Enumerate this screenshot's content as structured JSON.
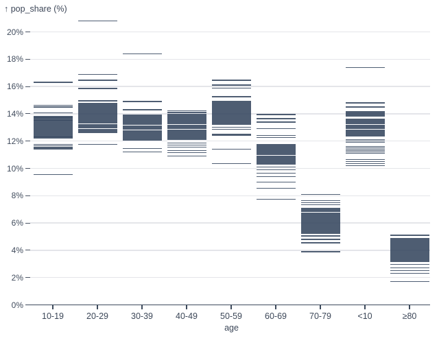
{
  "chart_data": {
    "type": "tick",
    "title": "",
    "ylabel": "↑ pop_share (%)",
    "xlabel": "age",
    "ylim": [
      0,
      21
    ],
    "yticks": [
      0,
      2,
      4,
      6,
      8,
      10,
      12,
      14,
      16,
      18,
      20
    ],
    "ytick_suffix": "%",
    "grid": true,
    "legend": "none",
    "colors": {
      "tick": "#36475e",
      "grid": "#e4e5e9",
      "axis": "#3d4a5c",
      "text": "#3c4758"
    },
    "categories": [
      "10-19",
      "20-29",
      "30-39",
      "40-49",
      "50-59",
      "60-69",
      "70-79",
      "<10",
      "≥80"
    ],
    "series": [
      {
        "age": "10-19",
        "values": [
          16.3,
          14.62,
          14.5,
          14.08,
          13.82,
          13.75,
          13.69,
          13.62,
          13.55,
          13.49,
          13.42,
          13.36,
          13.3,
          13.24,
          13.18,
          13.12,
          13.05,
          12.99,
          12.93,
          12.86,
          12.8,
          12.73,
          12.67,
          12.6,
          12.54,
          12.47,
          12.41,
          12.34,
          12.28,
          12.22,
          11.76,
          11.65,
          11.54,
          11.44,
          9.55
        ]
      },
      {
        "age": "20-29",
        "values": [
          20.82,
          16.9,
          16.45,
          15.85,
          14.95,
          14.76,
          14.7,
          14.63,
          14.56,
          14.49,
          14.42,
          14.35,
          14.28,
          14.21,
          14.14,
          14.07,
          14.0,
          13.93,
          13.86,
          13.79,
          13.72,
          13.65,
          13.58,
          13.51,
          13.44,
          13.37,
          13.3,
          13.23,
          13.16,
          13.09,
          13.02,
          12.95,
          12.88,
          12.81,
          12.74,
          12.67,
          12.6,
          11.76
        ]
      },
      {
        "age": "30-39",
        "values": [
          18.4,
          14.9,
          14.3,
          13.9,
          13.83,
          13.76,
          13.69,
          13.62,
          13.55,
          13.48,
          13.41,
          13.34,
          13.27,
          13.2,
          13.13,
          13.06,
          12.99,
          12.92,
          12.85,
          12.78,
          12.71,
          12.64,
          12.57,
          12.5,
          12.43,
          12.36,
          12.29,
          12.22,
          12.15,
          12.08,
          11.45,
          11.2
        ]
      },
      {
        "age": "40-49",
        "values": [
          14.22,
          14.1,
          13.95,
          13.88,
          13.81,
          13.74,
          13.67,
          13.6,
          13.53,
          13.46,
          13.39,
          13.32,
          13.25,
          13.18,
          13.11,
          13.04,
          12.97,
          12.9,
          12.83,
          12.76,
          12.69,
          12.62,
          12.55,
          12.48,
          12.41,
          12.34,
          12.27,
          12.2,
          12.13,
          11.85,
          11.7,
          11.55,
          11.3,
          11.15,
          10.9
        ]
      },
      {
        "age": "50-59",
        "values": [
          16.45,
          16.1,
          15.88,
          15.25,
          14.9,
          14.83,
          14.76,
          14.69,
          14.62,
          14.55,
          14.48,
          14.41,
          14.34,
          14.27,
          14.2,
          14.13,
          14.06,
          13.99,
          13.92,
          13.85,
          13.78,
          13.71,
          13.64,
          13.57,
          13.5,
          13.43,
          13.36,
          13.29,
          13.22,
          13.0,
          12.85,
          12.52,
          12.44,
          11.4,
          10.35
        ]
      },
      {
        "age": "60-69",
        "values": [
          13.95,
          13.65,
          13.4,
          12.9,
          12.42,
          12.25,
          11.76,
          11.69,
          11.62,
          11.55,
          11.48,
          11.41,
          11.34,
          11.27,
          11.2,
          11.13,
          11.06,
          10.99,
          10.92,
          10.85,
          10.78,
          10.71,
          10.64,
          10.57,
          10.5,
          10.43,
          10.36,
          10.29,
          10.1,
          9.9,
          9.65,
          9.4,
          9.0,
          8.55,
          7.75
        ]
      },
      {
        "age": "70-79",
        "values": [
          8.08,
          7.65,
          7.5,
          7.35,
          7.1,
          7.03,
          6.96,
          6.89,
          6.82,
          6.75,
          6.68,
          6.61,
          6.54,
          6.47,
          6.4,
          6.33,
          6.26,
          6.19,
          6.12,
          6.05,
          5.98,
          5.91,
          5.84,
          5.77,
          5.7,
          5.63,
          5.56,
          5.49,
          5.42,
          5.35,
          5.28,
          5.21,
          5.05,
          4.8,
          4.55,
          3.9
        ]
      },
      {
        "age": "<10",
        "values": [
          17.4,
          14.8,
          14.5,
          14.15,
          14.05,
          13.95,
          13.85,
          13.6,
          13.53,
          13.46,
          13.39,
          13.32,
          13.25,
          13.18,
          13.11,
          13.04,
          12.97,
          12.9,
          12.83,
          12.76,
          12.69,
          12.62,
          12.55,
          12.48,
          12.41,
          12.35,
          12.1,
          12.0,
          11.9,
          11.6,
          11.5,
          11.4,
          11.3,
          11.2,
          11.1,
          10.65,
          10.5,
          10.35,
          10.2
        ]
      },
      {
        "age": "≥80",
        "values": [
          5.1,
          4.85,
          4.78,
          4.71,
          4.64,
          4.57,
          4.5,
          4.43,
          4.36,
          4.29,
          4.22,
          4.15,
          4.08,
          4.01,
          3.94,
          3.87,
          3.8,
          3.73,
          3.66,
          3.59,
          3.52,
          3.45,
          3.38,
          3.31,
          3.24,
          3.17,
          2.95,
          2.7,
          2.5,
          2.3,
          1.7
        ]
      }
    ]
  }
}
